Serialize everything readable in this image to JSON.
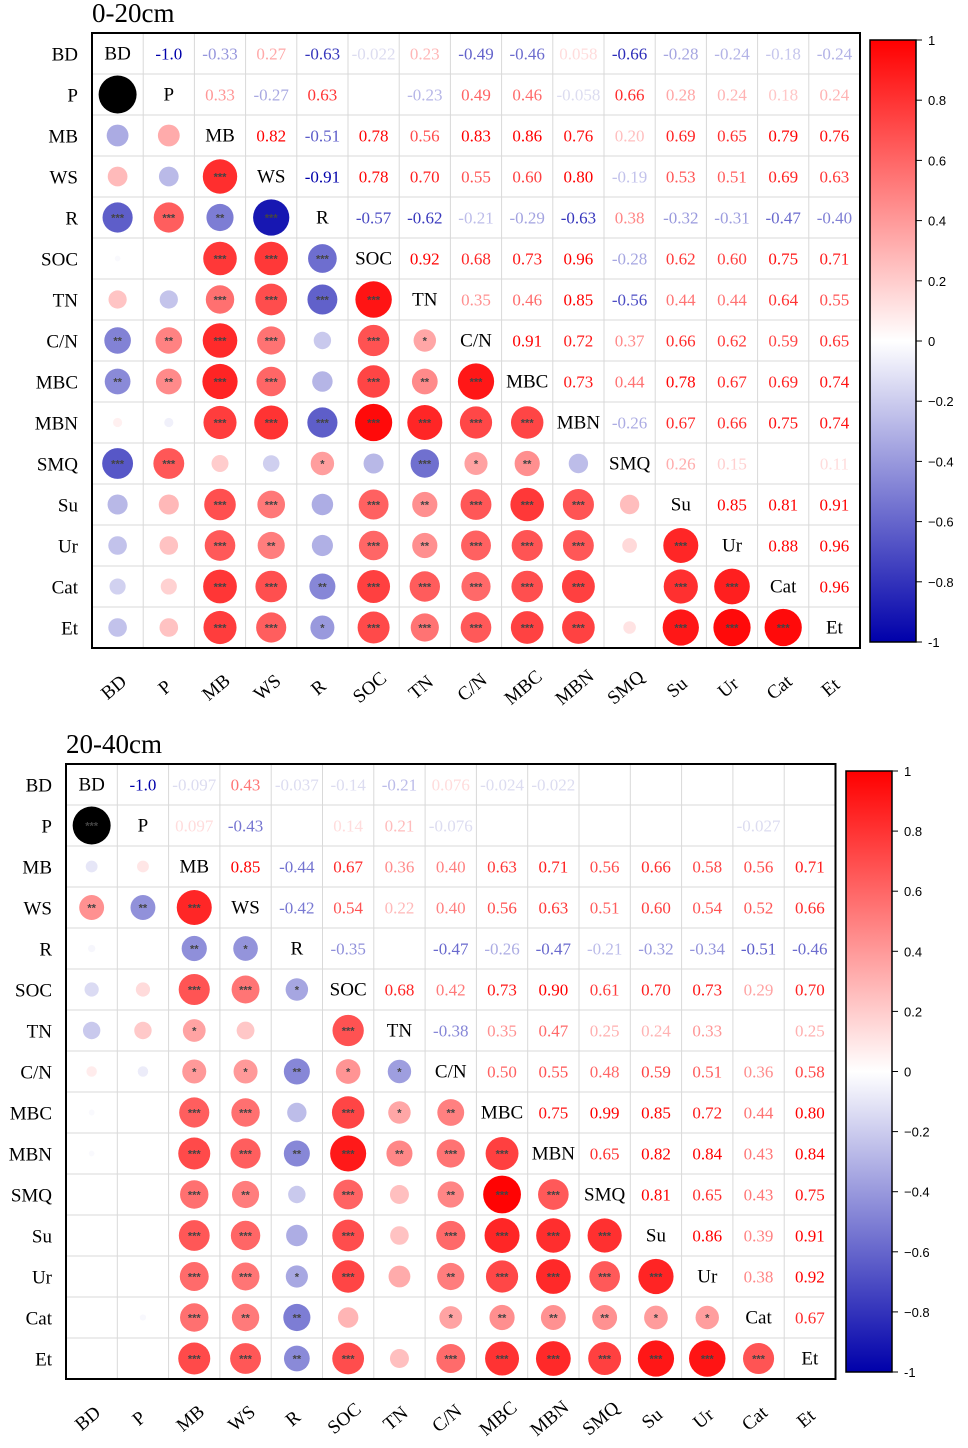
{
  "chart_data": [
    {
      "type": "heatmap",
      "subtype": "correlation-matrix",
      "title": "0-20cm",
      "variables": [
        "BD",
        "P",
        "MB",
        "WS",
        "R",
        "SOC",
        "TN",
        "C/N",
        "MBC",
        "MBN",
        "SMQ",
        "Su",
        "Ur",
        "Cat",
        "Et"
      ],
      "upper_triangle_labels": [
        [
          null,
          "-1.0",
          "-0.33",
          "0.27",
          "-0.63",
          "-0.022",
          "0.23",
          "-0.49",
          "-0.46",
          "0.058",
          "-0.66",
          "-0.28",
          "-0.24",
          "-0.18",
          "-0.24"
        ],
        [
          null,
          null,
          "0.33",
          "-0.27",
          "0.63",
          "",
          "-0.23",
          "0.49",
          "0.46",
          "-0.058",
          "0.66",
          "0.28",
          "0.24",
          "0.18",
          "0.24"
        ],
        [
          null,
          null,
          null,
          "0.82",
          "-0.51",
          "0.78",
          "0.56",
          "0.83",
          "0.86",
          "0.76",
          "0.20",
          "0.69",
          "0.65",
          "0.79",
          "0.76"
        ],
        [
          null,
          null,
          null,
          null,
          "-0.91",
          "0.78",
          "0.70",
          "0.55",
          "0.60",
          "0.80",
          "-0.19",
          "0.53",
          "0.51",
          "0.69",
          "0.63"
        ],
        [
          null,
          null,
          null,
          null,
          null,
          "-0.57",
          "-0.62",
          "-0.21",
          "-0.29",
          "-0.63",
          "0.38",
          "-0.32",
          "-0.31",
          "-0.47",
          "-0.40"
        ],
        [
          null,
          null,
          null,
          null,
          null,
          null,
          "0.92",
          "0.68",
          "0.73",
          "0.96",
          "-0.28",
          "0.62",
          "0.60",
          "0.75",
          "0.71"
        ],
        [
          null,
          null,
          null,
          null,
          null,
          null,
          null,
          "0.35",
          "0.46",
          "0.85",
          "-0.56",
          "0.44",
          "0.44",
          "0.64",
          "0.55"
        ],
        [
          null,
          null,
          null,
          null,
          null,
          null,
          null,
          null,
          "0.91",
          "0.72",
          "0.37",
          "0.66",
          "0.62",
          "0.59",
          "0.65"
        ],
        [
          null,
          null,
          null,
          null,
          null,
          null,
          null,
          null,
          null,
          "0.73",
          "0.44",
          "0.78",
          "0.67",
          "0.69",
          "0.74"
        ],
        [
          null,
          null,
          null,
          null,
          null,
          null,
          null,
          null,
          null,
          null,
          "-0.26",
          "0.67",
          "0.66",
          "0.75",
          "0.74"
        ],
        [
          null,
          null,
          null,
          null,
          null,
          null,
          null,
          null,
          null,
          null,
          null,
          "0.26",
          "0.15",
          "",
          "0.11"
        ],
        [
          null,
          null,
          null,
          null,
          null,
          null,
          null,
          null,
          null,
          null,
          null,
          null,
          "0.85",
          "0.81",
          "0.91"
        ],
        [
          null,
          null,
          null,
          null,
          null,
          null,
          null,
          null,
          null,
          null,
          null,
          null,
          null,
          "0.88",
          "0.96"
        ],
        [
          null,
          null,
          null,
          null,
          null,
          null,
          null,
          null,
          null,
          null,
          null,
          null,
          null,
          null,
          "0.96"
        ],
        [
          null,
          null,
          null,
          null,
          null,
          null,
          null,
          null,
          null,
          null,
          null,
          null,
          null,
          null,
          null
        ]
      ],
      "lower_triangle_stars": [
        [
          null,
          null,
          null,
          null,
          null,
          null,
          null,
          null,
          null,
          null,
          null,
          null,
          null,
          null,
          null
        ],
        [
          "",
          null,
          null,
          null,
          null,
          null,
          null,
          null,
          null,
          null,
          null,
          null,
          null,
          null,
          null
        ],
        [
          "",
          "",
          null,
          null,
          null,
          null,
          null,
          null,
          null,
          null,
          null,
          null,
          null,
          null,
          null
        ],
        [
          "",
          "",
          "***",
          null,
          null,
          null,
          null,
          null,
          null,
          null,
          null,
          null,
          null,
          null,
          null
        ],
        [
          "***",
          "***",
          "**",
          "***",
          null,
          null,
          null,
          null,
          null,
          null,
          null,
          null,
          null,
          null,
          null
        ],
        [
          "",
          "",
          "***",
          "***",
          "***",
          null,
          null,
          null,
          null,
          null,
          null,
          null,
          null,
          null,
          null
        ],
        [
          "",
          "",
          "***",
          "***",
          "***",
          "***",
          null,
          null,
          null,
          null,
          null,
          null,
          null,
          null,
          null
        ],
        [
          "**",
          "**",
          "***",
          "***",
          "",
          "***",
          "*",
          null,
          null,
          null,
          null,
          null,
          null,
          null,
          null
        ],
        [
          "**",
          "**",
          "***",
          "***",
          "",
          "***",
          "**",
          "***",
          null,
          null,
          null,
          null,
          null,
          null,
          null
        ],
        [
          "",
          "",
          "***",
          "***",
          "***",
          "***",
          "***",
          "***",
          "***",
          null,
          null,
          null,
          null,
          null,
          null
        ],
        [
          "***",
          "***",
          "",
          "",
          "*",
          "",
          "***",
          "*",
          "**",
          "",
          null,
          null,
          null,
          null,
          null
        ],
        [
          "",
          "",
          "***",
          "***",
          "",
          "***",
          "**",
          "***",
          "***",
          "***",
          "",
          null,
          null,
          null,
          null
        ],
        [
          "",
          "",
          "***",
          "**",
          "",
          "***",
          "**",
          "***",
          "***",
          "***",
          "",
          "***",
          null,
          null,
          null
        ],
        [
          "",
          "",
          "***",
          "***",
          "**",
          "***",
          "***",
          "***",
          "***",
          "***",
          "",
          "***",
          "***",
          null,
          null
        ],
        [
          "",
          "",
          "***",
          "***",
          "*",
          "***",
          "***",
          "***",
          "***",
          "***",
          "",
          "***",
          "***",
          "***",
          null
        ]
      ],
      "color_scale": {
        "min": -1,
        "max": 1,
        "low": "#0000aa",
        "mid": "#ffffff",
        "high": "#ff0000",
        "ticks": [
          "-1",
          "−0.8",
          "−0.6",
          "−0.4",
          "−0.2",
          "0",
          "0.2",
          "0.4",
          "0.6",
          "0.8",
          "1"
        ]
      }
    },
    {
      "type": "heatmap",
      "subtype": "correlation-matrix",
      "title": "20-40cm",
      "variables": [
        "BD",
        "P",
        "MB",
        "WS",
        "R",
        "SOC",
        "TN",
        "C/N",
        "MBC",
        "MBN",
        "SMQ",
        "Su",
        "Ur",
        "Cat",
        "Et"
      ],
      "upper_triangle_labels": [
        [
          null,
          "-1.0",
          "-0.097",
          "0.43",
          "-0.037",
          "-0.14",
          "-0.21",
          "0.076",
          "-0.024",
          "-0.022",
          "",
          "",
          "",
          "",
          ""
        ],
        [
          null,
          null,
          "0.097",
          "-0.43",
          "",
          "0.14",
          "0.21",
          "-0.076",
          "",
          "",
          "",
          "",
          "",
          "-0.027",
          ""
        ],
        [
          null,
          null,
          null,
          "0.85",
          "-0.44",
          "0.67",
          "0.36",
          "0.40",
          "0.63",
          "0.71",
          "0.56",
          "0.66",
          "0.58",
          "0.56",
          "0.71"
        ],
        [
          null,
          null,
          null,
          null,
          "-0.42",
          "0.54",
          "0.22",
          "0.40",
          "0.56",
          "0.63",
          "0.51",
          "0.60",
          "0.54",
          "0.52",
          "0.66"
        ],
        [
          null,
          null,
          null,
          null,
          null,
          "-0.35",
          "",
          "-0.47",
          "-0.26",
          "-0.47",
          "-0.21",
          "-0.32",
          "-0.34",
          "-0.51",
          "-0.46"
        ],
        [
          null,
          null,
          null,
          null,
          null,
          null,
          "0.68",
          "0.42",
          "0.73",
          "0.90",
          "0.61",
          "0.70",
          "0.73",
          "0.29",
          "0.70"
        ],
        [
          null,
          null,
          null,
          null,
          null,
          null,
          null,
          "-0.38",
          "0.35",
          "0.47",
          "0.25",
          "0.24",
          "0.33",
          "",
          "0.25"
        ],
        [
          null,
          null,
          null,
          null,
          null,
          null,
          null,
          null,
          "0.50",
          "0.55",
          "0.48",
          "0.59",
          "0.51",
          "0.36",
          "0.58"
        ],
        [
          null,
          null,
          null,
          null,
          null,
          null,
          null,
          null,
          null,
          "0.75",
          "0.99",
          "0.85",
          "0.72",
          "0.44",
          "0.80"
        ],
        [
          null,
          null,
          null,
          null,
          null,
          null,
          null,
          null,
          null,
          null,
          "0.65",
          "0.82",
          "0.84",
          "0.43",
          "0.84"
        ],
        [
          null,
          null,
          null,
          null,
          null,
          null,
          null,
          null,
          null,
          null,
          null,
          "0.81",
          "0.65",
          "0.43",
          "0.75"
        ],
        [
          null,
          null,
          null,
          null,
          null,
          null,
          null,
          null,
          null,
          null,
          null,
          null,
          "0.86",
          "0.39",
          "0.91"
        ],
        [
          null,
          null,
          null,
          null,
          null,
          null,
          null,
          null,
          null,
          null,
          null,
          null,
          null,
          "0.38",
          "0.92"
        ],
        [
          null,
          null,
          null,
          null,
          null,
          null,
          null,
          null,
          null,
          null,
          null,
          null,
          null,
          null,
          "0.67"
        ],
        [
          null,
          null,
          null,
          null,
          null,
          null,
          null,
          null,
          null,
          null,
          null,
          null,
          null,
          null,
          null
        ]
      ],
      "lower_triangle_stars": [
        [
          null,
          null,
          null,
          null,
          null,
          null,
          null,
          null,
          null,
          null,
          null,
          null,
          null,
          null,
          null
        ],
        [
          "***",
          null,
          null,
          null,
          null,
          null,
          null,
          null,
          null,
          null,
          null,
          null,
          null,
          null,
          null
        ],
        [
          "",
          "",
          null,
          null,
          null,
          null,
          null,
          null,
          null,
          null,
          null,
          null,
          null,
          null,
          null
        ],
        [
          "**",
          "**",
          "***",
          null,
          null,
          null,
          null,
          null,
          null,
          null,
          null,
          null,
          null,
          null,
          null
        ],
        [
          "",
          "",
          "**",
          "*",
          null,
          null,
          null,
          null,
          null,
          null,
          null,
          null,
          null,
          null,
          null
        ],
        [
          "",
          "",
          "***",
          "***",
          "*",
          null,
          null,
          null,
          null,
          null,
          null,
          null,
          null,
          null,
          null
        ],
        [
          "",
          "",
          "*",
          "",
          "",
          "***",
          null,
          null,
          null,
          null,
          null,
          null,
          null,
          null,
          null
        ],
        [
          "",
          "",
          "*",
          "*",
          "**",
          "*",
          "*",
          null,
          null,
          null,
          null,
          null,
          null,
          null,
          null
        ],
        [
          "",
          "",
          "***",
          "***",
          "",
          "***",
          "*",
          "**",
          null,
          null,
          null,
          null,
          null,
          null,
          null
        ],
        [
          "",
          "",
          "***",
          "***",
          "**",
          "***",
          "**",
          "***",
          "***",
          null,
          null,
          null,
          null,
          null,
          null
        ],
        [
          "",
          "",
          "***",
          "**",
          "",
          "***",
          "",
          "**",
          "***",
          "***",
          null,
          null,
          null,
          null,
          null
        ],
        [
          "",
          "",
          "***",
          "***",
          "",
          "***",
          "",
          "***",
          "***",
          "***",
          "***",
          null,
          null,
          null,
          null
        ],
        [
          "",
          "",
          "***",
          "***",
          "*",
          "***",
          "",
          "**",
          "***",
          "***",
          "***",
          "***",
          null,
          null,
          null
        ],
        [
          "",
          "",
          "***",
          "**",
          "**",
          "",
          "",
          "*",
          "**",
          "**",
          "**",
          "*",
          "*",
          null,
          null
        ],
        [
          "",
          "",
          "***",
          "***",
          "**",
          "***",
          "",
          "***",
          "***",
          "***",
          "***",
          "***",
          "***",
          "***",
          null
        ]
      ],
      "color_scale": {
        "min": -1,
        "max": 1,
        "low": "#0000aa",
        "mid": "#ffffff",
        "high": "#ff0000",
        "ticks": [
          "-1",
          "−0.8",
          "−0.6",
          "−0.4",
          "−0.2",
          "0",
          "0.2",
          "0.4",
          "0.6",
          "0.8",
          "1"
        ]
      }
    }
  ]
}
